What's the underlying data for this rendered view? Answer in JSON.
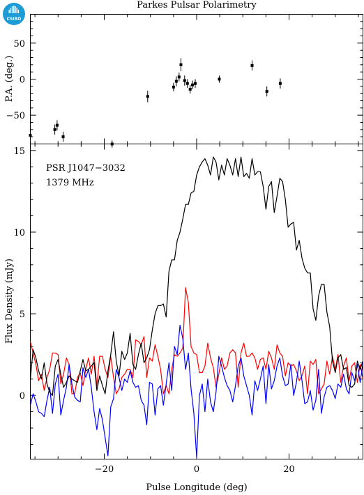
{
  "header": {
    "title": "Parkes Pulsar Polarimetry"
  },
  "logo": {
    "text": "CSIRO",
    "color": "#1d9bd7",
    "icon": "csiro-logo-icon"
  },
  "chart_data": [
    {
      "type": "scatter",
      "panel": "position-angle",
      "ylabel": "P.A. (deg.)",
      "xlim": [
        -36,
        36
      ],
      "ylim": [
        -90,
        90
      ],
      "yticks": [
        -50,
        0,
        50
      ],
      "ytick_labels": [
        "−50",
        "0",
        "50"
      ],
      "points": [
        {
          "x": -36.0,
          "y": -78,
          "err": 7
        },
        {
          "x": -30.7,
          "y": -70,
          "err": 7
        },
        {
          "x": -30.2,
          "y": -64,
          "err": 7
        },
        {
          "x": -28.9,
          "y": -80,
          "err": 7
        },
        {
          "x": -18.3,
          "y": -90,
          "err": 5
        },
        {
          "x": -10.6,
          "y": -24,
          "err": 8
        },
        {
          "x": -5.0,
          "y": -11,
          "err": 6
        },
        {
          "x": -4.4,
          "y": -3,
          "err": 7
        },
        {
          "x": -3.8,
          "y": 3,
          "err": 6
        },
        {
          "x": -3.4,
          "y": 20,
          "err": 9
        },
        {
          "x": -2.6,
          "y": -2,
          "err": 7
        },
        {
          "x": -2.0,
          "y": -6,
          "err": 6
        },
        {
          "x": -1.4,
          "y": -14,
          "err": 6
        },
        {
          "x": -0.9,
          "y": -8,
          "err": 6
        },
        {
          "x": -0.3,
          "y": -6,
          "err": 6
        },
        {
          "x": 4.9,
          "y": 0,
          "err": 5
        },
        {
          "x": 12.0,
          "y": 19,
          "err": 7
        },
        {
          "x": 15.2,
          "y": -17,
          "err": 7
        },
        {
          "x": 18.1,
          "y": -6,
          "err": 7
        }
      ]
    },
    {
      "type": "line",
      "panel": "flux-density",
      "xlabel": "Pulse Longitude (deg)",
      "ylabel": "Flux Density (mJy)",
      "xlim": [
        -36,
        36
      ],
      "ylim": [
        -3.9,
        15.4
      ],
      "xticks": [
        -20,
        0,
        20
      ],
      "xtick_labels": [
        "−20",
        "0",
        "20"
      ],
      "yticks": [
        0,
        5,
        10,
        15
      ],
      "ytick_labels": [
        "0",
        "5",
        "10",
        "15"
      ],
      "annotations": [
        "PSR J1047−3032",
        "1379 MHz"
      ],
      "x": [
        -36.0,
        -35.4,
        -34.8,
        -34.2,
        -33.6,
        -33.0,
        -32.4,
        -31.8,
        -31.2,
        -30.6,
        -30.0,
        -29.4,
        -28.8,
        -28.2,
        -27.6,
        -27.0,
        -26.4,
        -25.8,
        -25.2,
        -24.6,
        -24.0,
        -23.4,
        -22.8,
        -22.2,
        -21.6,
        -21.0,
        -20.4,
        -19.8,
        -19.2,
        -18.6,
        -18.0,
        -17.4,
        -16.8,
        -16.2,
        -15.6,
        -15.0,
        -14.4,
        -13.8,
        -13.2,
        -12.6,
        -12.0,
        -11.4,
        -10.8,
        -10.2,
        -9.6,
        -9.0,
        -8.4,
        -7.8,
        -7.2,
        -6.6,
        -6.0,
        -5.4,
        -4.8,
        -4.2,
        -3.6,
        -3.0,
        -2.4,
        -1.8,
        -1.2,
        -0.6,
        0.0,
        0.6,
        1.2,
        1.8,
        2.4,
        3.0,
        3.6,
        4.2,
        4.8,
        5.4,
        6.0,
        6.6,
        7.2,
        7.8,
        8.4,
        9.0,
        9.6,
        10.2,
        10.8,
        11.4,
        12.0,
        12.6,
        13.2,
        13.8,
        14.4,
        15.0,
        15.6,
        16.2,
        16.8,
        17.4,
        18.0,
        18.6,
        19.2,
        19.8,
        20.4,
        21.0,
        21.6,
        22.2,
        22.8,
        23.4,
        24.0,
        24.6,
        25.2,
        25.8,
        26.4,
        27.0,
        27.6,
        28.2,
        28.8,
        29.4,
        30.0,
        30.6,
        31.2,
        31.8,
        32.4,
        33.0,
        33.6,
        34.2,
        34.8,
        35.4,
        36.0
      ],
      "series": [
        {
          "color": "#000000",
          "values": [
            1.0,
            2.8,
            2.3,
            1.5,
            1.0,
            2.0,
            0.7,
            0.2,
            0.0,
            1.8,
            2.2,
            1.3,
            0.5,
            0.8,
            1.2,
            1.0,
            0.9,
            0.8,
            1.5,
            2.2,
            1.5,
            1.6,
            1.8,
            2.0,
            0.3,
            1.2,
            0.6,
            0.1,
            1.5,
            2.5,
            3.9,
            2.1,
            1.2,
            2.7,
            2.2,
            2.6,
            3.8,
            1.9,
            1.6,
            2.5,
            3.2,
            2.0,
            2.3,
            2.8,
            4.0,
            5.0,
            5.5,
            5.5,
            5.6,
            4.8,
            7.6,
            8.3,
            8.3,
            9.5,
            10.0,
            10.8,
            11.7,
            11.7,
            12.4,
            12.5,
            13.5,
            14.0,
            14.3,
            14.5,
            14.1,
            13.5,
            14.6,
            14.3,
            13.2,
            14.1,
            13.5,
            14.5,
            14.1,
            13.5,
            14.5,
            13.4,
            14.6,
            13.4,
            13.6,
            13.3,
            14.5,
            13.5,
            13.7,
            13.7,
            12.8,
            11.4,
            12.8,
            13.1,
            11.2,
            12.2,
            13.3,
            13.1,
            12.0,
            10.3,
            10.5,
            10.6,
            8.9,
            9.5,
            8.4,
            7.8,
            7.5,
            7.5,
            5.3,
            4.6,
            6.1,
            6.8,
            6.8,
            5.1,
            4.2,
            2.1,
            1.4,
            2.3,
            2.5,
            1.6,
            1.7,
            0.6,
            0.5,
            0.7,
            2.1,
            1.6,
            2.1
          ]
        },
        {
          "color": "#ff0000",
          "values": [
            3.3,
            2.6,
            1.9,
            0.9,
            1.3,
            0.3,
            1.1,
            1.6,
            2.6,
            2.6,
            2.5,
            0.7,
            1.3,
            2.3,
            1.9,
            0.1,
            0.1,
            1.1,
            1.4,
            0.6,
            1.6,
            2.3,
            1.3,
            2.4,
            0.6,
            2.4,
            2.4,
            1.6,
            1.1,
            2.4,
            1.1,
            0.1,
            0.4,
            1.1,
            1.3,
            1.6,
            1.6,
            1.1,
            3.4,
            3.3,
            3.1,
            3.6,
            1.1,
            2.3,
            2.1,
            3.1,
            2.4,
            1.6,
            0.1,
            0.6,
            0.1,
            1.6,
            2.5,
            2.4,
            2.6,
            2.9,
            6.6,
            5.7,
            3.0,
            2.6,
            2.5,
            1.4,
            1.4,
            1.8,
            3.2,
            2.3,
            1.7,
            0.5,
            1.3,
            2.3,
            1.6,
            1.8,
            2.6,
            2.8,
            2.6,
            0.5,
            2.6,
            3.2,
            2.4,
            2.4,
            2.6,
            2.3,
            1.6,
            2.2,
            2.3,
            1.6,
            2.7,
            2.3,
            1.6,
            3.1,
            2.6,
            2.4,
            1.2,
            2.0,
            1.8,
            1.9,
            1.5,
            0.9,
            1.2,
            1.8,
            0.1,
            2.1,
            1.9,
            2.2,
            0.1,
            0.4,
            0.7,
            2.1,
            1.3,
            2.4,
            1.6,
            2.5,
            0.8,
            1.8,
            2.3,
            0.9,
            1.8,
            2.0,
            0.8,
            1.9,
            1.0
          ]
        },
        {
          "color": "#0000ff",
          "values": [
            -0.6,
            0.1,
            -0.4,
            -1.0,
            -1.1,
            -1.3,
            -0.3,
            0.5,
            -1.1,
            0.7,
            1.3,
            -1.2,
            -0.3,
            0.5,
            1.9,
            0.7,
            -0.1,
            -0.3,
            -0.4,
            1.7,
            1.1,
            1.6,
            0.5,
            -1.0,
            -2.1,
            -0.8,
            -1.5,
            -2.6,
            -3.7,
            -0.7,
            -0.2,
            1.6,
            1.1,
            0.3,
            1.0,
            0.8,
            1.5,
            0.8,
            0.5,
            0.6,
            -0.3,
            -0.6,
            -1.8,
            0.8,
            0.7,
            -1.2,
            0.4,
            0.6,
            -0.6,
            0.7,
            2.0,
            0.3,
            3.0,
            2.5,
            4.3,
            3.5,
            1.6,
            2.6,
            0.4,
            -1.1,
            -3.8,
            0.0,
            0.7,
            -1.0,
            1.0,
            -0.4,
            -1.0,
            0.2,
            2.4,
            1.8,
            1.1,
            0.6,
            0.3,
            -0.4,
            0.6,
            1.8,
            2.3,
            1.2,
            0.6,
            0.0,
            -1.2,
            0.9,
            0.3,
            1.0,
            1.8,
            -0.5,
            1.9,
            0.4,
            0.9,
            1.8,
            2.3,
            1.2,
            0.6,
            0.7,
            1.9,
            0.0,
            0.8,
            2.1,
            0.9,
            -0.5,
            -0.4,
            0.3,
            -0.9,
            -0.3,
            1.6,
            -1.1,
            -0.1,
            0.5,
            0.6,
            0.3,
            -0.2,
            0.7,
            0.5,
            1.3,
            0.4,
            0.1,
            1.4,
            0.9,
            1.9,
            0.8,
            2.0
          ]
        }
      ]
    }
  ]
}
